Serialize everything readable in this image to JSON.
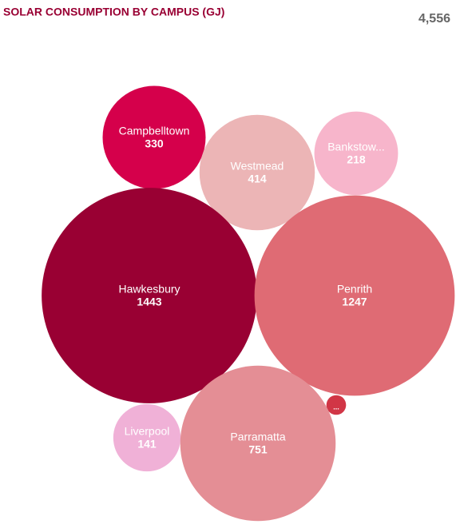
{
  "chart_data": {
    "type": "bubble",
    "title": "SOLAR CONSUMPTION BY CAMPUS (GJ)",
    "total": {
      "value": 4556,
      "label": "4,556"
    },
    "categories": [
      "Campbelltown",
      "Westmead",
      "Bankstow...",
      "Hawkesbury",
      "Penrith",
      "...",
      "Liverpool",
      "Parramatta"
    ],
    "values": [
      330,
      414,
      218,
      1443,
      1247,
      12,
      141,
      751
    ],
    "colors": [
      "#d5004b",
      "#ecb5b6",
      "#f7b5cb",
      "#990033",
      "#df6b74",
      "#d13646",
      "#f0b1d7",
      "#e48e95"
    ]
  }
}
